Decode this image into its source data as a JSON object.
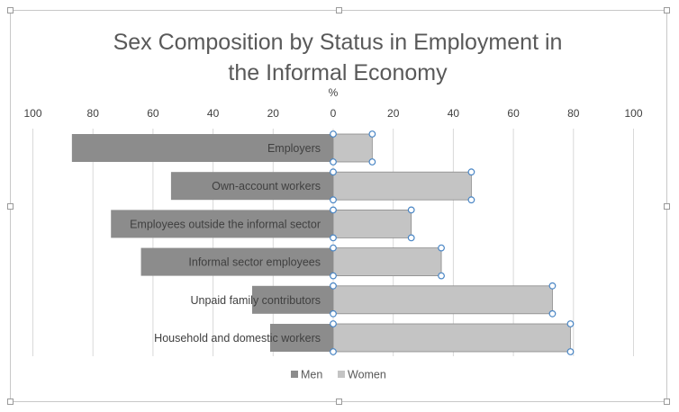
{
  "chart_data": {
    "type": "bar",
    "orientation": "horizontal-diverging",
    "title_lines": [
      "Sex Composition by Status in Employment in",
      "the Informal Economy"
    ],
    "unit_label": "%",
    "categories": [
      "Employers",
      "Own-account workers",
      "Employees outside the informal sector",
      "Informal sector employees",
      "Unpaid family contributors",
      "Household and domestic workers"
    ],
    "series": [
      {
        "name": "Men",
        "values": [
          87,
          54,
          74,
          64,
          27,
          21
        ],
        "color": "#8c8c8c"
      },
      {
        "name": "Women",
        "values": [
          13,
          46,
          26,
          36,
          73,
          79
        ],
        "color": "#c4c4c4"
      }
    ],
    "ticks": [
      "100",
      "80",
      "60",
      "40",
      "20",
      "0",
      "20",
      "40",
      "60",
      "80",
      "100"
    ],
    "xlim": [
      -100,
      100
    ],
    "grid": true,
    "legend_position": "bottom",
    "selected_series": "Women"
  }
}
